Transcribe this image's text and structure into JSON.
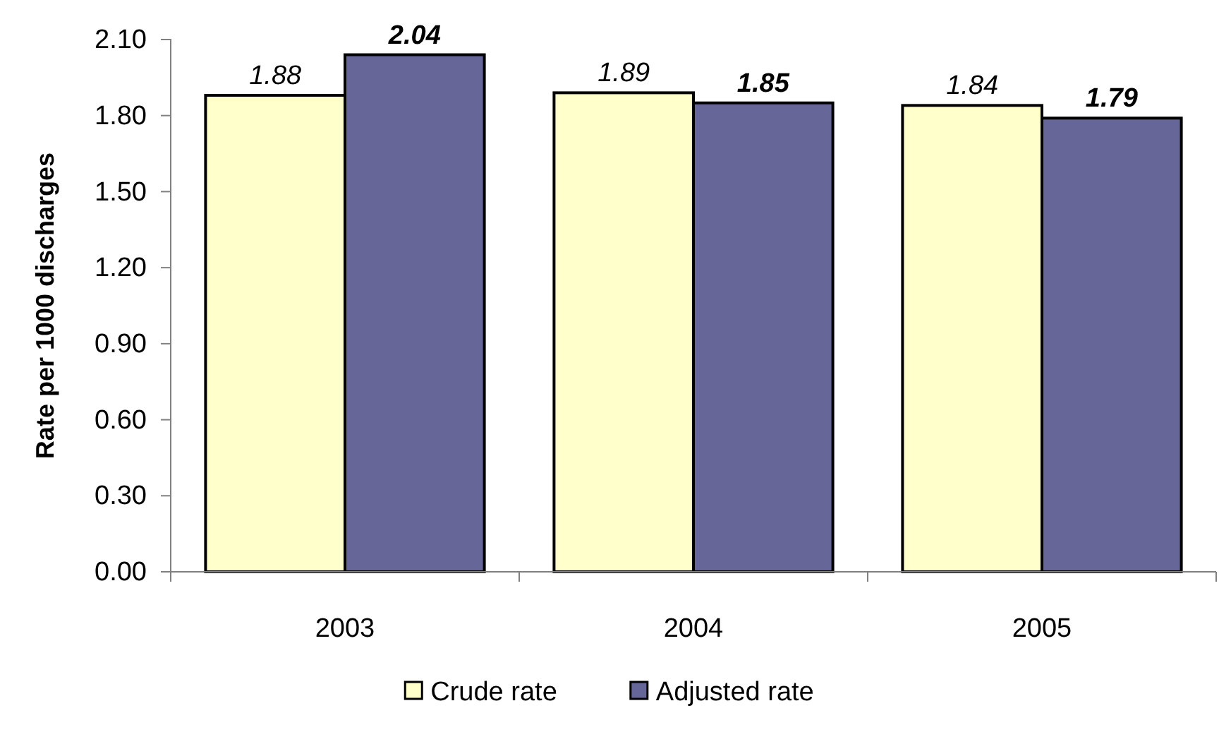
{
  "chart_data": {
    "type": "bar",
    "ylabel": "Rate per 1000 discharges",
    "categories": [
      "2003",
      "2004",
      "2005"
    ],
    "series": [
      {
        "name": "Crude rate",
        "color": "#ffffcc",
        "values": [
          1.88,
          1.89,
          1.84
        ]
      },
      {
        "name": "Adjusted rate",
        "color": "#666699",
        "values": [
          2.04,
          1.85,
          1.79
        ]
      }
    ],
    "ylim": [
      0,
      2.1
    ],
    "yticks": [
      {
        "value": 0,
        "label": "0.00"
      },
      {
        "value": 0.3,
        "label": "0.30"
      },
      {
        "value": 0.6,
        "label": "0.60"
      },
      {
        "value": 0.9,
        "label": "0.90"
      },
      {
        "value": 1.2,
        "label": "1.20"
      },
      {
        "value": 1.5,
        "label": "1.50"
      },
      {
        "value": 1.8,
        "label": "1.80"
      },
      {
        "value": 2.1,
        "label": "2.10"
      }
    ],
    "grid": false,
    "legend": "bottom",
    "data_labels": true
  }
}
